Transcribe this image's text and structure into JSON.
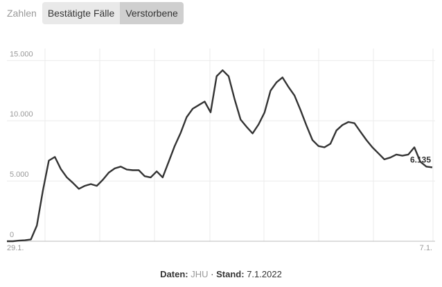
{
  "controls": {
    "label": "Zahlen",
    "options": [
      "Bestätigte Fälle",
      "Verstorbene"
    ],
    "selected": 1
  },
  "chart_data": {
    "type": "line",
    "color": "#333333",
    "categories": [
      "29.1.",
      null,
      null,
      null,
      null,
      null,
      null,
      null,
      null,
      null,
      null,
      null,
      null,
      null,
      null,
      null,
      null,
      null,
      null,
      null,
      null,
      null,
      null,
      null,
      null,
      null,
      null,
      null,
      null,
      null,
      null,
      null,
      null,
      null,
      null,
      null,
      null,
      null,
      null,
      null,
      null,
      null,
      null,
      null,
      null,
      null,
      null,
      null,
      null,
      null,
      null,
      null,
      null,
      null,
      null,
      null,
      null,
      null,
      null,
      null,
      null,
      null,
      null,
      null,
      null,
      null,
      null,
      null,
      null,
      null,
      null,
      "7.1."
    ],
    "values": [
      0,
      0,
      50,
      80,
      150,
      1300,
      4200,
      6700,
      7000,
      6000,
      5300,
      4850,
      4350,
      4600,
      4750,
      4600,
      5100,
      5700,
      6050,
      6200,
      5950,
      5900,
      5900,
      5400,
      5300,
      5800,
      5300,
      6600,
      7900,
      9000,
      10300,
      11000,
      11300,
      11600,
      10700,
      13700,
      14200,
      13700,
      11800,
      10100,
      9500,
      8950,
      9700,
      10700,
      12500,
      13200,
      13600,
      12800,
      12100,
      10900,
      9600,
      8400,
      7900,
      7800,
      8100,
      9200,
      9650,
      9900,
      9800,
      9100,
      8400,
      7800,
      7300,
      6800,
      6950,
      7200,
      7100,
      7200,
      7800,
      6600,
      6200,
      6135
    ],
    "value_labels": [
      null,
      null,
      null,
      null,
      null,
      null,
      null,
      null,
      null,
      null,
      null,
      null,
      null,
      null,
      null,
      null,
      null,
      null,
      null,
      null,
      null,
      null,
      null,
      null,
      null,
      null,
      null,
      null,
      null,
      null,
      null,
      null,
      null,
      null,
      null,
      null,
      null,
      null,
      null,
      null,
      null,
      null,
      null,
      null,
      null,
      null,
      null,
      null,
      null,
      null,
      null,
      null,
      null,
      null,
      null,
      null,
      null,
      null,
      null,
      null,
      null,
      null,
      null,
      null,
      null,
      null,
      null,
      null,
      null,
      null,
      null,
      "6.135"
    ],
    "ylim": [
      0,
      16000
    ],
    "yticks": [
      0,
      {
        "value": 5000,
        "label": "5.000"
      },
      {
        "value": 10000,
        "label": "10.000"
      },
      {
        "value": 15000,
        "label": "15.000"
      }
    ],
    "grid": true
  },
  "footer": {
    "source_label": "Daten:",
    "source": "JHU",
    "separator": "·",
    "date_label": "Stand:",
    "date": "7.1.2022"
  }
}
